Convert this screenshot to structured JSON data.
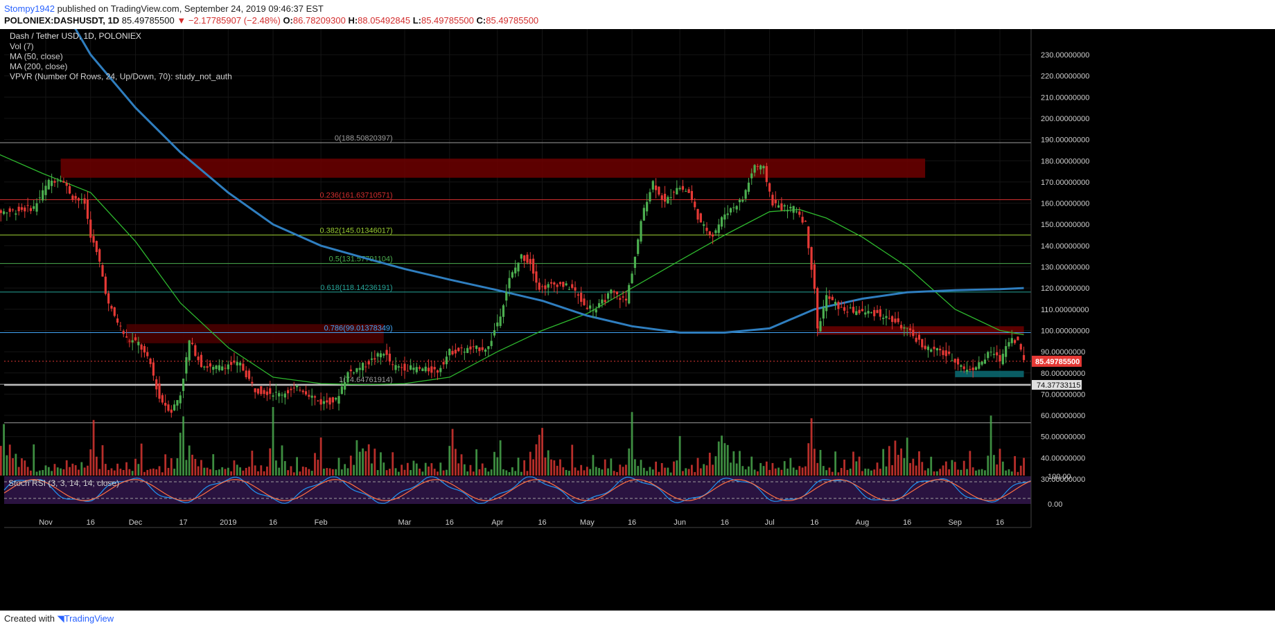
{
  "header": {
    "publisher": "Stompy1942",
    "published_text": " published on TradingView.com, September 24, 2019 09:46:37 EST",
    "symbol_line": "POLONIEX:DASHUSDT, 1D",
    "last": "85.49785500",
    "change": "−2.17785907 (−2.48%)",
    "o_label": "O:",
    "o": "86.78209300",
    "h_label": "H:",
    "h": "88.05492845",
    "l_label": "L:",
    "l": "85.49785500",
    "c_label": "C:",
    "c": "85.49785500"
  },
  "legend": {
    "title": "Dash / Tether USD, 1D, POLONIEX",
    "lines": [
      "Vol (7)",
      "MA (50, close)",
      "MA (200, close)",
      "VPVR (Number Of Rows, 24, Up/Down, 70): study_not_auth"
    ]
  },
  "footer": {
    "created": "Created with",
    "brand": "TradingView"
  },
  "colors": {
    "background": "#000000",
    "up": "#4caf50",
    "down": "#e53935",
    "ma50": "#2eb82e",
    "ma200": "#2f7ebf",
    "zone": "#6d0000",
    "support": "#0b6c74"
  },
  "chart_data": {
    "type": "candlestick",
    "title": "Dash / Tether USD, 1D, POLONIEX",
    "ylim": [
      0,
      235
    ],
    "price_ticks": [
      230,
      220,
      210,
      200,
      190,
      180,
      170,
      160,
      150,
      140,
      130,
      120,
      110,
      100,
      90,
      80,
      70,
      60,
      50,
      40,
      30
    ],
    "price_tick_labels": [
      "230.00000000",
      "220.00000000",
      "210.00000000",
      "200.00000000",
      "190.00000000",
      "180.00000000",
      "170.00000000",
      "160.00000000",
      "150.00000000",
      "140.00000000",
      "130.00000000",
      "120.00000000",
      "110.00000000",
      "100.00000000",
      "90.00000000",
      "80.00000000",
      "70.00000000",
      "60.00000000",
      "50.00000000",
      "40.00000000",
      "30.00000000"
    ],
    "x_tick_labels": [
      {
        "label": "Nov",
        "date": "2018-11-01"
      },
      {
        "label": "16",
        "date": "2018-11-16"
      },
      {
        "label": "Dec",
        "date": "2018-12-01"
      },
      {
        "label": "17",
        "date": "2018-12-17"
      },
      {
        "label": "2019",
        "date": "2019-01-01"
      },
      {
        "label": "16",
        "date": "2019-01-16"
      },
      {
        "label": "Feb",
        "date": "2019-02-01"
      },
      {
        "label": "Mar",
        "date": "2019-03-01"
      },
      {
        "label": "16",
        "date": "2019-03-16"
      },
      {
        "label": "Apr",
        "date": "2019-04-01"
      },
      {
        "label": "16",
        "date": "2019-04-16"
      },
      {
        "label": "May",
        "date": "2019-05-01"
      },
      {
        "label": "16",
        "date": "2019-05-16"
      },
      {
        "label": "Jun",
        "date": "2019-06-01"
      },
      {
        "label": "16",
        "date": "2019-06-16"
      },
      {
        "label": "Jul",
        "date": "2019-07-01"
      },
      {
        "label": "16",
        "date": "2019-07-16"
      },
      {
        "label": "Aug",
        "date": "2019-08-01"
      },
      {
        "label": "16",
        "date": "2019-08-16"
      },
      {
        "label": "Sep",
        "date": "2019-09-01"
      },
      {
        "label": "16",
        "date": "2019-09-16"
      }
    ],
    "price_path": [
      [
        "2018-10-10",
        156
      ],
      [
        "2018-10-20",
        156
      ],
      [
        "2018-10-28",
        158
      ],
      [
        "2018-11-02",
        170
      ],
      [
        "2018-11-06",
        172
      ],
      [
        "2018-11-10",
        163
      ],
      [
        "2018-11-14",
        160
      ],
      [
        "2018-11-16",
        145
      ],
      [
        "2018-11-19",
        132
      ],
      [
        "2018-11-22",
        112
      ],
      [
        "2018-11-25",
        104
      ],
      [
        "2018-11-28",
        96
      ],
      [
        "2018-12-02",
        94
      ],
      [
        "2018-12-06",
        84
      ],
      [
        "2018-12-09",
        68
      ],
      [
        "2018-12-13",
        62
      ],
      [
        "2018-12-16",
        70
      ],
      [
        "2018-12-19",
        95
      ],
      [
        "2018-12-23",
        84
      ],
      [
        "2018-12-27",
        82
      ],
      [
        "2019-01-01",
        84
      ],
      [
        "2019-01-05",
        84
      ],
      [
        "2019-01-10",
        72
      ],
      [
        "2019-01-18",
        70
      ],
      [
        "2019-01-25",
        73
      ],
      [
        "2019-02-01",
        66
      ],
      [
        "2019-02-06",
        67
      ],
      [
        "2019-02-10",
        80
      ],
      [
        "2019-02-16",
        84
      ],
      [
        "2019-02-22",
        90
      ],
      [
        "2019-02-25",
        83
      ],
      [
        "2019-03-05",
        82
      ],
      [
        "2019-03-12",
        81
      ],
      [
        "2019-03-16",
        90
      ],
      [
        "2019-03-22",
        91
      ],
      [
        "2019-03-29",
        92
      ],
      [
        "2019-04-02",
        108
      ],
      [
        "2019-04-05",
        124
      ],
      [
        "2019-04-09",
        135
      ],
      [
        "2019-04-12",
        132
      ],
      [
        "2019-04-15",
        120
      ],
      [
        "2019-04-21",
        122
      ],
      [
        "2019-04-26",
        120
      ],
      [
        "2019-04-30",
        112
      ],
      [
        "2019-05-04",
        110
      ],
      [
        "2019-05-09",
        118
      ],
      [
        "2019-05-14",
        114
      ],
      [
        "2019-05-17",
        135
      ],
      [
        "2019-05-20",
        158
      ],
      [
        "2019-05-23",
        170
      ],
      [
        "2019-05-27",
        160
      ],
      [
        "2019-05-31",
        168
      ],
      [
        "2019-06-04",
        165
      ],
      [
        "2019-06-08",
        150
      ],
      [
        "2019-06-12",
        145
      ],
      [
        "2019-06-16",
        155
      ],
      [
        "2019-06-22",
        162
      ],
      [
        "2019-06-26",
        178
      ],
      [
        "2019-06-29",
        176
      ],
      [
        "2019-07-02",
        160
      ],
      [
        "2019-07-05",
        158
      ],
      [
        "2019-07-10",
        157
      ],
      [
        "2019-07-13",
        150
      ],
      [
        "2019-07-16",
        120
      ],
      [
        "2019-07-17",
        100
      ],
      [
        "2019-07-20",
        116
      ],
      [
        "2019-07-25",
        110
      ],
      [
        "2019-07-30",
        109
      ],
      [
        "2019-08-06",
        108
      ],
      [
        "2019-08-12",
        104
      ],
      [
        "2019-08-16",
        100
      ],
      [
        "2019-08-22",
        92
      ],
      [
        "2019-08-27",
        90
      ],
      [
        "2019-09-01",
        86
      ],
      [
        "2019-09-05",
        81
      ],
      [
        "2019-09-09",
        84
      ],
      [
        "2019-09-13",
        90
      ],
      [
        "2019-09-16",
        86
      ],
      [
        "2019-09-19",
        96
      ],
      [
        "2019-09-22",
        95
      ],
      [
        "2019-09-24",
        85.5
      ]
    ],
    "ma50_path": [
      [
        "2018-10-10",
        187
      ],
      [
        "2018-10-31",
        174
      ],
      [
        "2018-11-16",
        165
      ],
      [
        "2018-12-01",
        142
      ],
      [
        "2018-12-16",
        113
      ],
      [
        "2019-01-01",
        92
      ],
      [
        "2019-01-16",
        78
      ],
      [
        "2019-02-01",
        75
      ],
      [
        "2019-02-16",
        74.5
      ],
      [
        "2019-03-01",
        75
      ],
      [
        "2019-03-16",
        78
      ],
      [
        "2019-04-01",
        90
      ],
      [
        "2019-04-16",
        100
      ],
      [
        "2019-05-01",
        108
      ],
      [
        "2019-05-16",
        120
      ],
      [
        "2019-06-01",
        133
      ],
      [
        "2019-06-16",
        145
      ],
      [
        "2019-07-01",
        156
      ],
      [
        "2019-07-11",
        157
      ],
      [
        "2019-07-20",
        153
      ],
      [
        "2019-08-01",
        144
      ],
      [
        "2019-08-16",
        130
      ],
      [
        "2019-09-01",
        110
      ],
      [
        "2019-09-16",
        100
      ],
      [
        "2019-09-24",
        98
      ]
    ],
    "ma200_path": [
      [
        "2018-11-06",
        254
      ],
      [
        "2018-11-16",
        230
      ],
      [
        "2018-12-01",
        205
      ],
      [
        "2018-12-16",
        184
      ],
      [
        "2019-01-01",
        165
      ],
      [
        "2019-01-16",
        150
      ],
      [
        "2019-02-01",
        140
      ],
      [
        "2019-02-16",
        134
      ],
      [
        "2019-03-01",
        129
      ],
      [
        "2019-03-16",
        124
      ],
      [
        "2019-04-01",
        119
      ],
      [
        "2019-04-16",
        114
      ],
      [
        "2019-05-01",
        107
      ],
      [
        "2019-05-16",
        102
      ],
      [
        "2019-06-01",
        99
      ],
      [
        "2019-06-16",
        99
      ],
      [
        "2019-07-01",
        101
      ],
      [
        "2019-07-16",
        110
      ],
      [
        "2019-08-01",
        115
      ],
      [
        "2019-08-16",
        118
      ],
      [
        "2019-09-01",
        119
      ],
      [
        "2019-09-16",
        119.5
      ],
      [
        "2019-09-24",
        120
      ]
    ],
    "fib_levels": [
      {
        "label": "0(188.50820397)",
        "value": 188.50820397,
        "color": "#9e9e9e"
      },
      {
        "label": "0.236(161.63710571)",
        "value": 161.63710571,
        "color": "#d32f2f"
      },
      {
        "label": "0.382(145.01346017)",
        "value": 145.01346017,
        "color": "#9acd32"
      },
      {
        "label": "0.5(131.57791104)",
        "value": 131.57791104,
        "color": "#4caf50"
      },
      {
        "label": "0.618(118.14236191)",
        "value": 118.14236191,
        "color": "#26a69a"
      },
      {
        "label": "0.786(99.01378349)",
        "value": 99.01378349,
        "color": "#42a5f5"
      },
      {
        "label": "1(74.64761914)",
        "value": 74.64761914,
        "color": "#9e9e9e"
      }
    ],
    "zones": [
      {
        "from": "2018-11-06",
        "to": "2019-08-22",
        "low": 172,
        "high": 181,
        "color": "#6d0000"
      },
      {
        "from": "2018-11-28",
        "to": "2019-02-22",
        "low": 94,
        "high": 103,
        "color": "#4d0000"
      },
      {
        "from": "2019-07-17",
        "to": "2019-09-24",
        "low": 98,
        "high": 102,
        "color": "#6d0000"
      },
      {
        "from": "2019-09-01",
        "to": "2019-09-24",
        "low": 78,
        "high": 81,
        "color": "#0b6c74"
      }
    ],
    "last_price": 85.497855,
    "last_price_label": "85.49785500",
    "support_price": 74.37733115,
    "support_label": "74.37733115",
    "support_line_value": 56.5,
    "volume_heights_percent": [
      22,
      8,
      30,
      12,
      35,
      18,
      40,
      48,
      65,
      40,
      52,
      28,
      30,
      14,
      34,
      18,
      12,
      10,
      35,
      9,
      8,
      14,
      12,
      20,
      10,
      28,
      18,
      12,
      8,
      20,
      10,
      30,
      12,
      8,
      15,
      10,
      12,
      36,
      90,
      30,
      14,
      34,
      16,
      8,
      12,
      8,
      30,
      8,
      14,
      20,
      10,
      8,
      34,
      22,
      45,
      8,
      10,
      8,
      12,
      8
    ],
    "stoch_rsi": {
      "label": "Stoch RSI (3, 3, 14, 14, close)",
      "ticks": [
        100,
        0
      ],
      "tick_labels": [
        "100.00",
        "0.00"
      ],
      "bands": [
        80,
        20
      ]
    }
  }
}
